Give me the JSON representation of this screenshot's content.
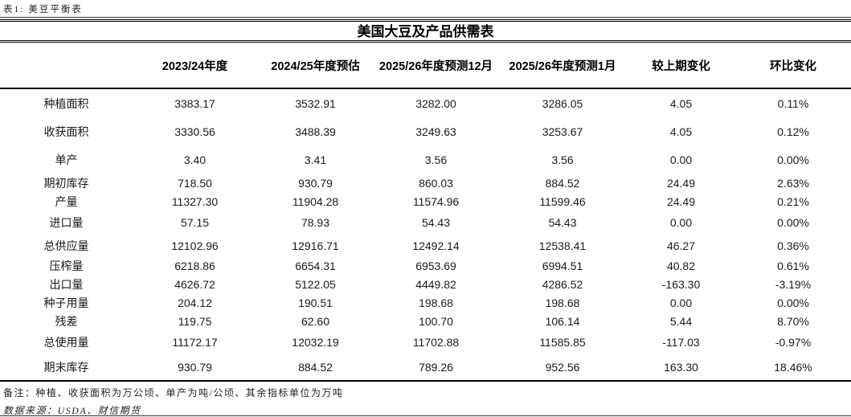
{
  "caption": "表1: 美豆平衡表",
  "title": "美国大豆及产品供需表",
  "table": {
    "columns": [
      "2023/24年度",
      "2024/25年度预估",
      "2025/26年度预测12月",
      "2025/26年度预测1月",
      "较上期变化",
      "环比变化"
    ],
    "rows": [
      {
        "label": "种植面积",
        "values": [
          "3383.17",
          "3532.91",
          "3282.00",
          "3286.05",
          "4.05",
          "0.11%"
        ]
      },
      {
        "label": "收获面积",
        "values": [
          "3330.56",
          "3488.39",
          "3249.63",
          "3253.67",
          "4.05",
          "0.12%"
        ]
      },
      {
        "label": "单产",
        "values": [
          "3.40",
          "3.41",
          "3.56",
          "3.56",
          "0.00",
          "0.00%"
        ]
      },
      {
        "label": "期初库存",
        "values": [
          "718.50",
          "930.79",
          "860.03",
          "884.52",
          "24.49",
          "2.63%"
        ]
      },
      {
        "label": "产量",
        "values": [
          "11327.30",
          "11904.28",
          "11574.96",
          "11599.46",
          "24.49",
          "0.21%"
        ]
      },
      {
        "label": "进口量",
        "values": [
          "57.15",
          "78.93",
          "54.43",
          "54.43",
          "0.00",
          "0.00%"
        ]
      },
      {
        "label": "总供应量",
        "values": [
          "12102.96",
          "12916.71",
          "12492.14",
          "12538.41",
          "46.27",
          "0.36%"
        ]
      },
      {
        "label": "压榨量",
        "values": [
          "6218.86",
          "6654.31",
          "6953.69",
          "6994.51",
          "40.82",
          "0.61%"
        ]
      },
      {
        "label": "出口量",
        "values": [
          "4626.72",
          "5122.05",
          "4449.82",
          "4286.52",
          "-163.30",
          "-3.19%"
        ]
      },
      {
        "label": "种子用量",
        "values": [
          "204.12",
          "190.51",
          "198.68",
          "198.68",
          "0.00",
          "0.00%"
        ]
      },
      {
        "label": "残差",
        "values": [
          "119.75",
          "62.60",
          "100.70",
          "106.14",
          "5.44",
          "8.70%"
        ]
      },
      {
        "label": "总使用量",
        "values": [
          "11172.17",
          "12032.19",
          "11702.88",
          "11585.85",
          "-117.03",
          "-0.97%"
        ]
      },
      {
        "label": "期末库存",
        "values": [
          "930.79",
          "884.52",
          "789.26",
          "952.56",
          "163.30",
          "18.46%"
        ]
      }
    ]
  },
  "notes": {
    "remark": "备注：种植、收获面积为万公顷、单产为吨/公顷、其余指标单位为万吨",
    "source": "数据来源：USDA、财信期货"
  }
}
